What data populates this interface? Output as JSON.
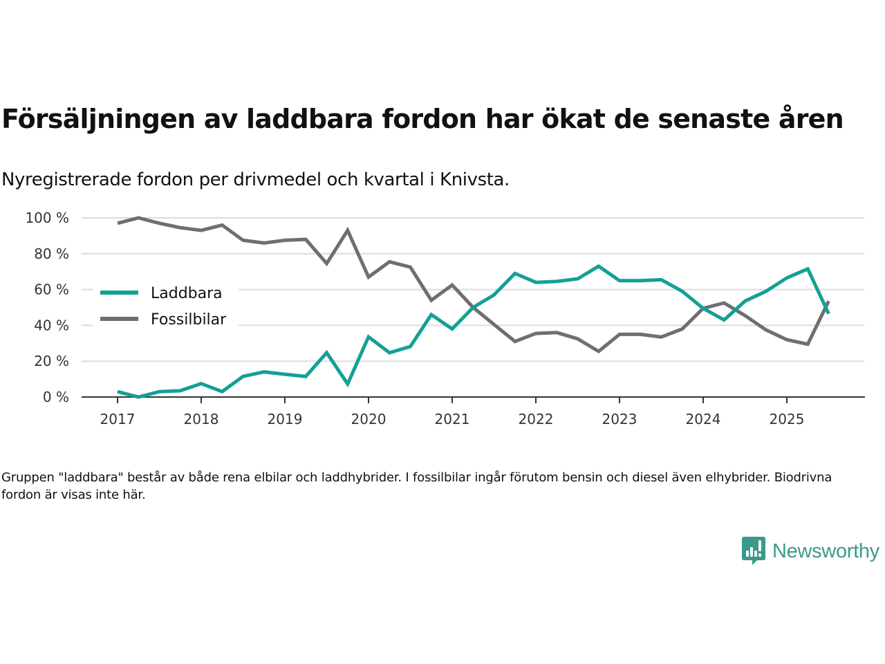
{
  "header": {
    "title": "Försäljningen av laddbara fordon har ökat de senaste åren",
    "subtitle": "Nyregistrerade fordon per drivmedel och kvartal i Knivsta."
  },
  "footnote": "Gruppen \"laddbara\" består av både rena elbilar och laddhybrider. I fossilbilar ingår förutom bensin och diesel även elhybrider. Biodrivna fordon är visas inte här.",
  "brand": {
    "name": "Newsworthy",
    "icon": "newsworthy-logo-icon",
    "color": "#3a9a8c"
  },
  "chart_data": {
    "type": "line",
    "title": "Försäljningen av laddbara fordon har ökat de senaste åren",
    "subtitle": "Nyregistrerade fordon per drivmedel och kvartal i Knivsta.",
    "xlabel": "",
    "ylabel": "",
    "x": [
      "2017-Q1",
      "2017-Q2",
      "2017-Q3",
      "2017-Q4",
      "2018-Q1",
      "2018-Q2",
      "2018-Q3",
      "2018-Q4",
      "2019-Q1",
      "2019-Q2",
      "2019-Q3",
      "2019-Q4",
      "2020-Q1",
      "2020-Q2",
      "2020-Q3",
      "2020-Q4",
      "2021-Q1",
      "2021-Q2",
      "2021-Q3",
      "2021-Q4",
      "2022-Q1",
      "2022-Q2",
      "2022-Q3",
      "2022-Q4",
      "2023-Q1",
      "2023-Q2",
      "2023-Q3",
      "2023-Q4",
      "2024-Q1",
      "2024-Q2",
      "2024-Q3",
      "2024-Q4",
      "2025-Q1",
      "2025-Q2",
      "2025-Q3"
    ],
    "x_ticks": [
      "2017",
      "2018",
      "2019",
      "2020",
      "2021",
      "2022",
      "2023",
      "2024",
      "2025"
    ],
    "y_ticks": [
      0,
      20,
      40,
      60,
      80,
      100
    ],
    "y_tick_suffix": " %",
    "ylim": [
      0,
      100
    ],
    "grid": true,
    "legend_position": "left-middle",
    "series": [
      {
        "name": "Laddbara",
        "color": "#13a095",
        "values": [
          3,
          0,
          3,
          3.5,
          7.5,
          3,
          11.5,
          14,
          12.7,
          11.5,
          24.7,
          7.3,
          33.6,
          24.7,
          28.2,
          46,
          38,
          50,
          57,
          69,
          64,
          64.5,
          66,
          73,
          65,
          65,
          65.5,
          59,
          49.5,
          43,
          53.5,
          59,
          66.5,
          71.5,
          46.5
        ]
      },
      {
        "name": "Fossilbilar",
        "color": "#6e6e73",
        "values": [
          97,
          100,
          97,
          94.5,
          93,
          96,
          87.5,
          86,
          87.5,
          88,
          74.5,
          93,
          67,
          75.5,
          72.5,
          54,
          62.5,
          50,
          40.5,
          31,
          35.5,
          36,
          32.5,
          25.5,
          35,
          35,
          33.5,
          38,
          49.5,
          52.5,
          45.5,
          37.5,
          32,
          29.5,
          53.5
        ]
      }
    ]
  }
}
